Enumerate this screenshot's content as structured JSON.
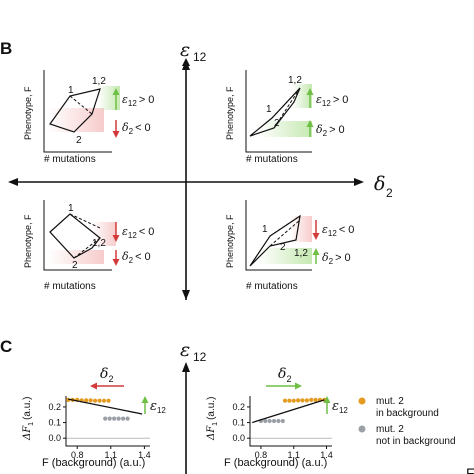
{
  "panel_b": {
    "label": "B",
    "axis_y_symbol": "ε",
    "axis_y_sub": "12",
    "axis_x_symbol": "δ",
    "axis_x_sub": "2",
    "quadrants": [
      {
        "ylabel": "Phenotype, F",
        "xlabel": "# mutations",
        "node1": "1",
        "node2": "2",
        "node12": "1,2",
        "cond_top_sym": "ε",
        "cond_top_sub": "12",
        "cond_top_rel": "> 0",
        "cond_bot_sym": "δ",
        "cond_bot_sub": "2",
        "cond_bot_rel": "< 0"
      },
      {
        "ylabel": "Phenotype, F",
        "xlabel": "# mutations",
        "node1": "1",
        "node2": "2",
        "node12": "1,2",
        "cond_top_sym": "ε",
        "cond_top_sub": "12",
        "cond_top_rel": "> 0",
        "cond_bot_sym": "δ",
        "cond_bot_sub": "2",
        "cond_bot_rel": "> 0"
      },
      {
        "ylabel": "Phenotype, F",
        "xlabel": "# mutations",
        "node1": "1",
        "node2": "2",
        "node12": "1,2",
        "cond_top_sym": "ε",
        "cond_top_sub": "12",
        "cond_top_rel": "< 0",
        "cond_bot_sym": "δ",
        "cond_bot_sub": "2",
        "cond_bot_rel": "< 0"
      },
      {
        "ylabel": "Phenotype, F",
        "xlabel": "# mutations",
        "node1": "1",
        "node2": "2",
        "node12": "1,2",
        "cond_top_sym": "ε",
        "cond_top_sub": "12",
        "cond_top_rel": "< 0",
        "cond_bot_sym": "δ",
        "cond_bot_sub": "2",
        "cond_bot_rel": "> 0"
      }
    ]
  },
  "panel_c": {
    "label": "C",
    "axis_y_symbol": "ε",
    "axis_y_sub": "12",
    "left_arrow_sym": "δ",
    "left_arrow_sub": "2",
    "right_arrow_sym": "δ",
    "right_arrow_sub": "2",
    "eps_sym": "ε",
    "eps_sub": "12",
    "ylabel_main": "ΔF",
    "ylabel_sub": "1",
    "ylabel_unit": "(a.u.)",
    "xlabel": "F (background) (a.u.)",
    "legend": [
      {
        "label_line1": "mut. 2",
        "label_line2": "in background",
        "color": "#e39a1f"
      },
      {
        "label_line1": "mut. 2",
        "label_line2": "not in background",
        "color": "#9aa0a6"
      }
    ],
    "edge_mark": "F",
    "colors": {
      "orange": "#e39a1f",
      "gray": "#9aa0a6",
      "red": "#d33a3a",
      "green": "#6fbf45"
    }
  },
  "chart_data": [
    {
      "type": "scatter",
      "title": "",
      "xlabel": "F (background) (a.u.)",
      "ylabel": "ΔF1 (a.u.)",
      "x_ticks": [
        "0.8",
        "1.1",
        "1.4"
      ],
      "y_ticks": [
        "0.2",
        "0.1",
        "0.0"
      ],
      "xlim": [
        0.7,
        1.45
      ],
      "ylim": [
        -0.05,
        0.27
      ],
      "series": [
        {
          "name": "mut. 2 in background",
          "x": [
            0.72,
            0.76,
            0.8,
            0.84,
            0.88,
            0.92,
            0.96,
            1.0,
            1.04,
            1.08
          ],
          "y": [
            0.245,
            0.245,
            0.245,
            0.242,
            0.242,
            0.242,
            0.24,
            0.24,
            0.24,
            0.24
          ]
        },
        {
          "name": "mut. 2 not in background",
          "x": [
            1.05,
            1.09,
            1.13,
            1.17,
            1.21,
            1.25
          ],
          "y": [
            0.125,
            0.125,
            0.125,
            0.125,
            0.125,
            0.125
          ]
        }
      ],
      "fit_line": {
        "x": [
          0.72,
          1.38
        ],
        "y": [
          0.25,
          0.155
        ]
      }
    },
    {
      "type": "scatter",
      "title": "",
      "xlabel": "F (background) (a.u.)",
      "ylabel": "ΔF1 (a.u.)",
      "x_ticks": [
        "0.8",
        "1.1",
        "1.4"
      ],
      "y_ticks": [
        "0.2",
        "0.1",
        "0.0"
      ],
      "xlim": [
        0.7,
        1.45
      ],
      "ylim": [
        -0.05,
        0.27
      ],
      "series": [
        {
          "name": "mut. 2 in background",
          "x": [
            1.02,
            1.06,
            1.1,
            1.14,
            1.18,
            1.22,
            1.26,
            1.3,
            1.34,
            1.38
          ],
          "y": [
            0.24,
            0.24,
            0.24,
            0.242,
            0.242,
            0.242,
            0.245,
            0.245,
            0.245,
            0.245
          ]
        },
        {
          "name": "mut. 2 not in background",
          "x": [
            0.8,
            0.84,
            0.88,
            0.92,
            0.96,
            1.0
          ],
          "y": [
            0.11,
            0.11,
            0.11,
            0.11,
            0.11,
            0.11
          ]
        }
      ],
      "fit_line": {
        "x": [
          0.72,
          1.38
        ],
        "y": [
          0.1,
          0.245
        ]
      }
    }
  ]
}
